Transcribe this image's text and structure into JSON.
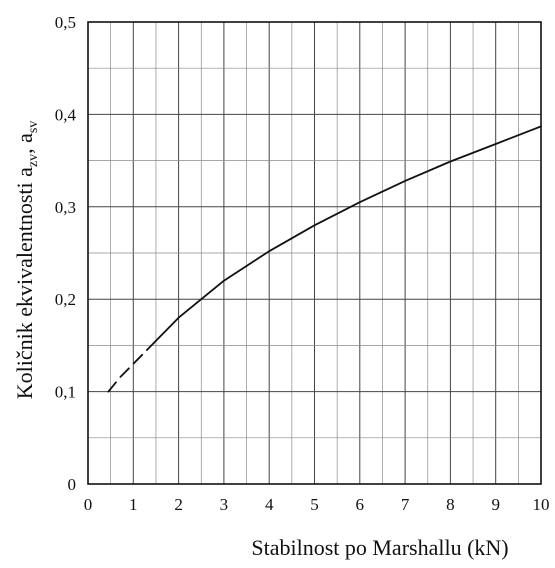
{
  "chart_data": {
    "type": "line",
    "title": "",
    "xlabel": "Stabilnost po Marshallu (kN)",
    "ylabel": "Količnik ekvivalentnosti a",
    "ylabel_sub1": "zv",
    "ylabel_sep": ", a",
    "ylabel_sub2": "sv",
    "xlim": [
      0,
      10
    ],
    "ylim": [
      0,
      0.5
    ],
    "x_ticks": [
      0,
      1,
      2,
      3,
      4,
      5,
      6,
      7,
      8,
      9,
      10
    ],
    "x_tick_labels": [
      "0",
      "1",
      "2",
      "3",
      "4",
      "5",
      "6",
      "7",
      "8",
      "9",
      "10"
    ],
    "y_ticks": [
      0,
      0.1,
      0.2,
      0.3,
      0.4,
      0.5
    ],
    "y_tick_labels": [
      "0",
      "0,1",
      "0,2",
      "0,3",
      "0,4",
      "0,5"
    ],
    "grid": true,
    "series": [
      {
        "style": "dashed",
        "x": [
          0.45,
          0.7,
          1.0,
          1.3
        ],
        "y": [
          0.1,
          0.115,
          0.13,
          0.145
        ]
      },
      {
        "style": "solid",
        "x": [
          1.3,
          2,
          3,
          4,
          5,
          6,
          7,
          8,
          9,
          10
        ],
        "y": [
          0.145,
          0.18,
          0.22,
          0.252,
          0.28,
          0.305,
          0.328,
          0.349,
          0.368,
          0.387
        ]
      }
    ]
  }
}
